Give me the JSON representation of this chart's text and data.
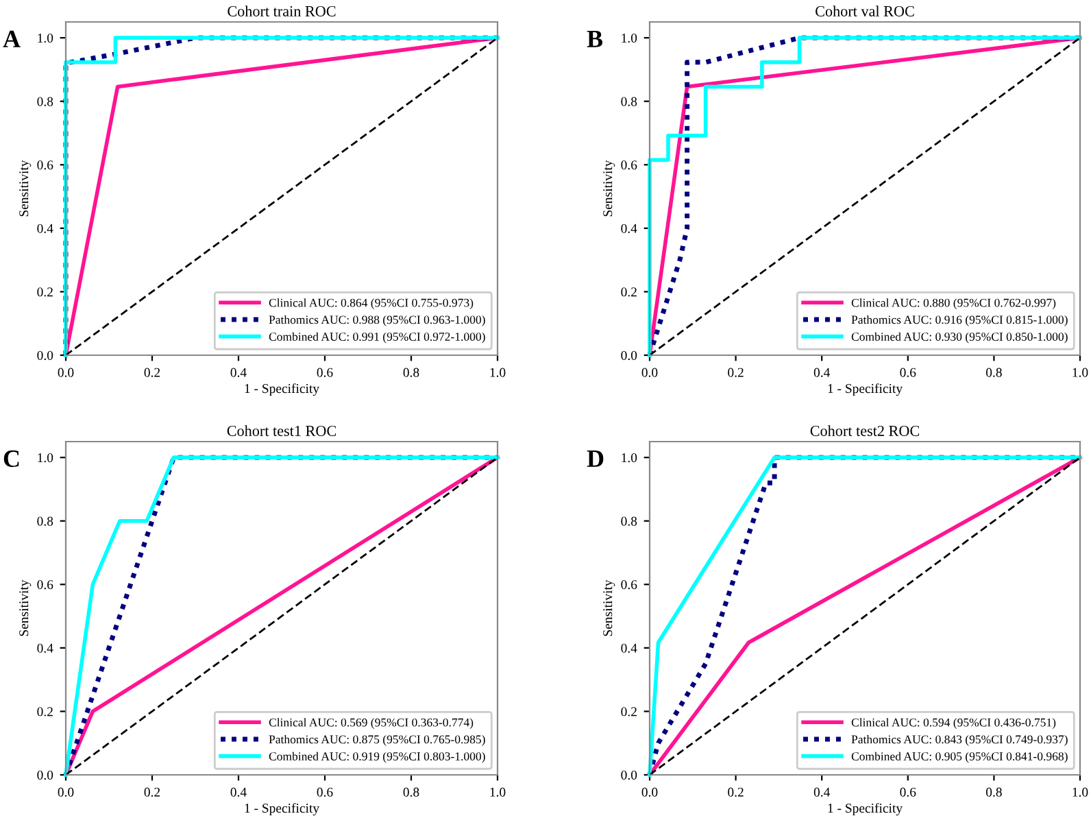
{
  "chart_data": [
    {
      "type": "line",
      "title": "Cohort train ROC",
      "xlabel": "1 - Specificity",
      "ylabel": "Sensitivity",
      "annotations": [
        "A"
      ],
      "xlim": [
        0,
        1
      ],
      "ylim": [
        0,
        1.05
      ],
      "xticks": [
        {
          "value": 0,
          "label": "0.0"
        },
        {
          "value": 0.2,
          "label": "0.2"
        },
        {
          "value": 0.4,
          "label": "0.4"
        },
        {
          "value": 0.6,
          "label": "0.6"
        },
        {
          "value": 0.8,
          "label": "0.8"
        },
        {
          "value": 1,
          "label": "1.0"
        }
      ],
      "yticks": [
        {
          "value": 0,
          "label": "0.0"
        },
        {
          "value": 0.2,
          "label": "0.2"
        },
        {
          "value": 0.4,
          "label": "0.4"
        },
        {
          "value": 0.6,
          "label": "0.6"
        },
        {
          "value": 0.8,
          "label": "0.8"
        },
        {
          "value": 1,
          "label": "1.0"
        }
      ],
      "grid": false,
      "legend": "bottom right",
      "series": [
        {
          "name": "Clinical AUC: 0.864 (95%CI 0.755-0.973)",
          "color": "#ff1493",
          "line_style": "solid",
          "x": [
            0,
            0.12,
            1
          ],
          "values": [
            0,
            0.846,
            1
          ]
        },
        {
          "name": "Pathomics AUC: 0.988 (95%CI 0.963-1.000)",
          "color": "#000080",
          "line_style": "dotted",
          "x": [
            0,
            0,
            0.12,
            0.3,
            1
          ],
          "values": [
            0,
            0.92,
            0.95,
            1,
            1
          ]
        },
        {
          "name": "Combined AUC: 0.991 (95%CI 0.972-1.000)",
          "color": "#00ffff",
          "line_style": "solid",
          "x": [
            0,
            0,
            0.115,
            0.115,
            1
          ],
          "values": [
            0,
            0.923,
            0.923,
            1,
            1
          ]
        },
        {
          "color": "#000000",
          "line_style": "dashed",
          "x": [
            0,
            1
          ],
          "values": [
            0,
            1
          ]
        }
      ]
    },
    {
      "type": "line",
      "title": "Cohort val ROC",
      "xlabel": "1 - Specificity",
      "ylabel": "Sensitivity",
      "annotations": [
        "B"
      ],
      "xlim": [
        0,
        1
      ],
      "ylim": [
        0,
        1.05
      ],
      "xticks": [
        {
          "value": 0,
          "label": "0.0"
        },
        {
          "value": 0.2,
          "label": "0.2"
        },
        {
          "value": 0.4,
          "label": "0.4"
        },
        {
          "value": 0.6,
          "label": "0.6"
        },
        {
          "value": 0.8,
          "label": "0.8"
        },
        {
          "value": 1,
          "label": "1.0"
        }
      ],
      "yticks": [
        {
          "value": 0,
          "label": "0.0"
        },
        {
          "value": 0.2,
          "label": "0.2"
        },
        {
          "value": 0.4,
          "label": "0.4"
        },
        {
          "value": 0.6,
          "label": "0.6"
        },
        {
          "value": 0.8,
          "label": "0.8"
        },
        {
          "value": 1,
          "label": "1.0"
        }
      ],
      "grid": false,
      "legend": "bottom right",
      "series": [
        {
          "name": "Clinical AUC: 0.880 (95%CI 0.762-0.997)",
          "color": "#ff1493",
          "line_style": "solid",
          "x": [
            0,
            0.087,
            1
          ],
          "values": [
            0,
            0.846,
            1
          ]
        },
        {
          "name": "Pathomics AUC: 0.916 (95%CI 0.815-1.000)",
          "color": "#000080",
          "line_style": "dotted",
          "x": [
            0,
            0.07,
            0.087,
            0.087,
            0.13,
            0.348,
            1
          ],
          "values": [
            0,
            0.3,
            0.4,
            0.923,
            0.923,
            1,
            1
          ]
        },
        {
          "name": "Combined AUC: 0.930 (95%CI 0.850-1.000)",
          "color": "#00ffff",
          "line_style": "solid",
          "x": [
            0,
            0,
            0.043,
            0.043,
            0.13,
            0.13,
            0.261,
            0.261,
            0.348,
            0.348,
            1
          ],
          "values": [
            0,
            0.615,
            0.615,
            0.692,
            0.692,
            0.846,
            0.846,
            0.923,
            0.923,
            1,
            1
          ]
        },
        {
          "color": "#000000",
          "line_style": "dashed",
          "x": [
            0,
            1
          ],
          "values": [
            0,
            1
          ]
        }
      ]
    },
    {
      "type": "line",
      "title": "Cohort test1 ROC",
      "xlabel": "1 - Specificity",
      "ylabel": "Sensitivity",
      "annotations": [
        "C"
      ],
      "xlim": [
        0,
        1
      ],
      "ylim": [
        0,
        1.05
      ],
      "xticks": [
        {
          "value": 0,
          "label": "0.0"
        },
        {
          "value": 0.2,
          "label": "0.2"
        },
        {
          "value": 0.4,
          "label": "0.4"
        },
        {
          "value": 0.6,
          "label": "0.6"
        },
        {
          "value": 0.8,
          "label": "0.8"
        },
        {
          "value": 1,
          "label": "1.0"
        }
      ],
      "yticks": [
        {
          "value": 0,
          "label": "0.0"
        },
        {
          "value": 0.2,
          "label": "0.2"
        },
        {
          "value": 0.4,
          "label": "0.4"
        },
        {
          "value": 0.6,
          "label": "0.6"
        },
        {
          "value": 0.8,
          "label": "0.8"
        },
        {
          "value": 1,
          "label": "1.0"
        }
      ],
      "grid": false,
      "legend": "bottom right",
      "series": [
        {
          "name": "Clinical AUC: 0.569 (95%CI 0.363-0.774)",
          "color": "#ff1493",
          "line_style": "solid",
          "x": [
            0,
            0.0625,
            1
          ],
          "values": [
            0,
            0.2,
            1
          ]
        },
        {
          "name": "Pathomics AUC: 0.875 (95%CI 0.765-0.985)",
          "color": "#000080",
          "line_style": "dotted",
          "x": [
            0,
            0.25,
            1
          ],
          "values": [
            0,
            1,
            1
          ]
        },
        {
          "name": "Combined AUC: 0.919 (95%CI 0.803-1.000)",
          "color": "#00ffff",
          "line_style": "solid",
          "x": [
            0,
            0.0625,
            0.125,
            0.1875,
            0.25,
            1
          ],
          "values": [
            0,
            0.6,
            0.8,
            0.8,
            1,
            1
          ]
        },
        {
          "color": "#000000",
          "line_style": "dashed",
          "x": [
            0,
            1
          ],
          "values": [
            0,
            1
          ]
        }
      ]
    },
    {
      "type": "line",
      "title": "Cohort test2 ROC",
      "xlabel": "1 - Specificity",
      "ylabel": "Sensitivity",
      "annotations": [
        "D"
      ],
      "xlim": [
        0,
        1
      ],
      "ylim": [
        0,
        1.05
      ],
      "xticks": [
        {
          "value": 0,
          "label": "0.0"
        },
        {
          "value": 0.2,
          "label": "0.2"
        },
        {
          "value": 0.4,
          "label": "0.4"
        },
        {
          "value": 0.6,
          "label": "0.6"
        },
        {
          "value": 0.8,
          "label": "0.8"
        },
        {
          "value": 1,
          "label": "1.0"
        }
      ],
      "yticks": [
        {
          "value": 0,
          "label": "0.0"
        },
        {
          "value": 0.2,
          "label": "0.2"
        },
        {
          "value": 0.4,
          "label": "0.4"
        },
        {
          "value": 0.6,
          "label": "0.6"
        },
        {
          "value": 0.8,
          "label": "0.8"
        },
        {
          "value": 1,
          "label": "1.0"
        }
      ],
      "grid": false,
      "legend": "bottom right",
      "series": [
        {
          "name": "Clinical AUC: 0.594 (95%CI 0.436-0.751)",
          "color": "#ff1493",
          "line_style": "solid",
          "x": [
            0,
            0.23,
            1
          ],
          "values": [
            0,
            0.417,
            1
          ]
        },
        {
          "name": "Pathomics AUC: 0.843 (95%CI 0.749-0.937)",
          "color": "#000080",
          "line_style": "dotted",
          "x": [
            0,
            0.02,
            0.13,
            0.27,
            0.29,
            0.29,
            1
          ],
          "values": [
            0,
            0.1,
            0.35,
            0.92,
            0.92,
            1,
            1
          ]
        },
        {
          "name": "Combined AUC: 0.905 (95%CI 0.841-0.968)",
          "color": "#00ffff",
          "line_style": "solid",
          "x": [
            0,
            0.02,
            0.29,
            1
          ],
          "values": [
            0,
            0.417,
            1,
            1
          ]
        },
        {
          "color": "#000000",
          "line_style": "dashed",
          "x": [
            0,
            1
          ],
          "values": [
            0,
            1
          ]
        }
      ]
    }
  ]
}
